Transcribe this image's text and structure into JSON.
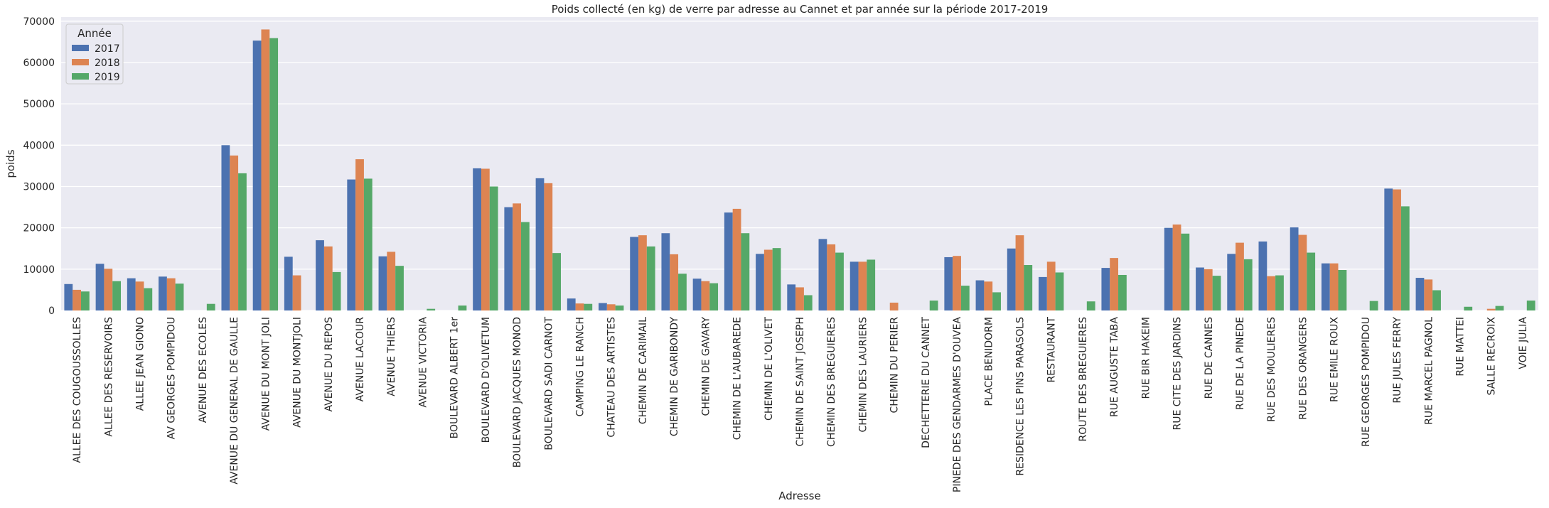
{
  "chart_data": {
    "type": "bar",
    "title": "Poids collecté (en kg) de verre par adresse au Cannet et par année sur la période 2017-2019",
    "xlabel": "Adresse",
    "ylabel": "poids",
    "ylim": [
      0,
      71000
    ],
    "yticks": [
      "0",
      "10000",
      "20000",
      "30000",
      "40000",
      "50000",
      "60000",
      "70000"
    ],
    "grid": true,
    "legend": {
      "title": "Année",
      "placement": "top-left"
    },
    "categories": [
      "ALLEE DES COUGOUSSOLLES",
      "ALLEE DES RESERVOIRS",
      "ALLEE JEAN GIONO",
      "AV GEORGES POMPIDOU",
      "AVENUE DES ECOLES",
      "AVENUE DU GENERAL DE GAULLE",
      "AVENUE DU MONT JOLI",
      "AVENUE DU MONTJOLI",
      "AVENUE DU REPOS",
      "AVENUE LACOUR",
      "AVENUE THIERS",
      "AVENUE VICTORIA",
      "BOULEVARD ALBERT 1er",
      "BOULEVARD D'OLIVETUM",
      "BOULEVARD JACQUES MONOD",
      "BOULEVARD SADI CARNOT",
      "CAMPING LE RANCH",
      "CHATEAU DES ARTISTES",
      "CHEMIN DE CARIMAIL",
      "CHEMIN DE GARIBONDY",
      "CHEMIN DE GAVARY",
      "CHEMIN DE L'AUBAREDE",
      "CHEMIN DE L'OLIVET",
      "CHEMIN DE SAINT JOSEPH",
      "CHEMIN DES BREGUIERES",
      "CHEMIN DES LAURIERS",
      "CHEMIN DU PERIER",
      "DECHETTERIE DU CANNET",
      "PINEDE DES GENDARMES D'OUVEA",
      "PLACE BENIDORM",
      "RESIDENCE LES PINS PARASOLS",
      "RESTAURANT",
      "ROUTE DES BREGUIERES",
      "RUE AUGUSTE TABA",
      "RUE BIR HAKEIM",
      "RUE CITE DES JARDINS",
      "RUE DE CANNES",
      "RUE DE LA PINEDE",
      "RUE DES MOULIERES",
      "RUE DES ORANGERS",
      "RUE EMILE ROUX",
      "RUE GEORGES POMPIDOU",
      "RUE JULES FERRY",
      "RUE MARCEL PAGNOL",
      "RUE MATTEI",
      "SALLE RECROIX",
      "VOIE JULIA"
    ],
    "series": [
      {
        "name": "2017",
        "color": "#4c72b0",
        "values": [
          6400,
          11300,
          7800,
          8200,
          0,
          40000,
          65300,
          13000,
          17000,
          31700,
          13100,
          0,
          0,
          34400,
          25000,
          32000,
          2900,
          1800,
          17800,
          18700,
          7700,
          23700,
          13700,
          6300,
          17300,
          11800,
          0,
          0,
          12900,
          7300,
          15000,
          8100,
          0,
          10300,
          0,
          20000,
          10400,
          13700,
          16700,
          20100,
          11400,
          0,
          29500,
          7900,
          0,
          0,
          0
        ]
      },
      {
        "name": "2018",
        "color": "#dd8452",
        "values": [
          5000,
          10100,
          7000,
          7800,
          0,
          37500,
          68000,
          8500,
          15500,
          36600,
          14200,
          0,
          0,
          34300,
          25900,
          30800,
          1700,
          1500,
          18200,
          13600,
          7100,
          24600,
          14700,
          5600,
          16000,
          11800,
          1900,
          0,
          13200,
          7000,
          18200,
          11800,
          0,
          12700,
          0,
          20800,
          10000,
          16400,
          8300,
          18300,
          11400,
          0,
          29300,
          7500,
          0,
          400,
          0
        ]
      },
      {
        "name": "2019",
        "color": "#55a868",
        "values": [
          4600,
          7100,
          5400,
          6500,
          1600,
          33200,
          65900,
          0,
          9300,
          31900,
          10800,
          400,
          1200,
          30000,
          21400,
          13900,
          1600,
          1200,
          15500,
          8900,
          6600,
          18700,
          15100,
          3700,
          14000,
          12300,
          0,
          2400,
          6000,
          4400,
          11000,
          9200,
          2200,
          8600,
          0,
          18600,
          8400,
          12400,
          8500,
          14000,
          9800,
          2300,
          25200,
          4900,
          900,
          1100,
          2400
        ]
      }
    ]
  }
}
